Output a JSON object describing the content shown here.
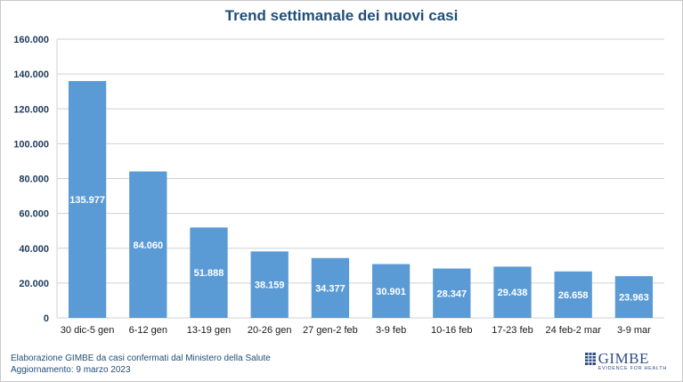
{
  "chart_data": {
    "type": "bar",
    "title": "Trend settimanale dei nuovi casi",
    "categories": [
      "30 dic-5 gen",
      "6-12 gen",
      "13-19 gen",
      "20-26 gen",
      "27 gen-2 feb",
      "3-9 feb",
      "10-16 feb",
      "17-23 feb",
      "24 feb-2 mar",
      "3-9 mar"
    ],
    "values": [
      135977,
      84060,
      51888,
      38159,
      34377,
      30901,
      28347,
      29438,
      26658,
      23963
    ],
    "data_labels": [
      "135.977",
      "84.060",
      "51.888",
      "38.159",
      "34.377",
      "30.901",
      "28.347",
      "29.438",
      "26.658",
      "23.963"
    ],
    "ylim": [
      0,
      160000
    ],
    "yticks": [
      0,
      20000,
      40000,
      60000,
      80000,
      100000,
      120000,
      140000,
      160000
    ],
    "ytick_labels": [
      "0",
      "20.000",
      "40.000",
      "60.000",
      "80.000",
      "100.000",
      "120.000",
      "140.000",
      "160.000"
    ],
    "grid": true,
    "bar_color": "#5b9bd5"
  },
  "footer": {
    "line1": "Elaborazione GIMBE da casi confermati dal Ministero della Salute",
    "line2": "Aggiornamento: 9 marzo 2023"
  },
  "logo": {
    "name": "GIMBE",
    "tagline": "EVIDENCE FOR HEALTH"
  }
}
